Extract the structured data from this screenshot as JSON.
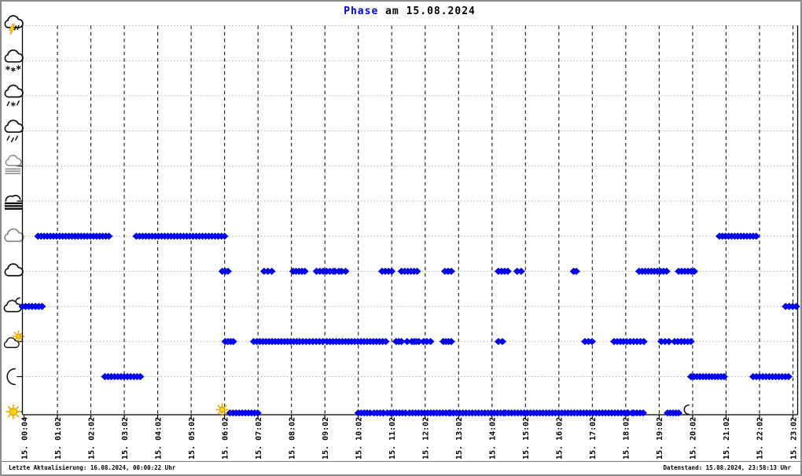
{
  "title": {
    "highlight": "Phase",
    "rest": " am 15.08.2024"
  },
  "status_bar": {
    "left": "Letzte Aktualisierung: 16.08.2024, 00:00:22 Uhr",
    "right": "Datenstand: 15.08.2024, 23:58:13 Uhr"
  },
  "colors": {
    "series": "#0000ee",
    "title_highlight": "#0000ff",
    "grid_horizontal": "#b2b2b2",
    "grid_vertical": "#1a1a1a",
    "axis": "#000000",
    "sun_yellow": "#ffd400",
    "sun_edge": "#d99e00",
    "icon_gray": "#8b8b8b",
    "icon_black": "#111111"
  },
  "chart_data": {
    "type": "scatter",
    "title": "Phase am 15.08.2024",
    "legend_position": "none",
    "grid": "on",
    "x_axis": {
      "unit": "hours offset from first tick (1 unit = 1 hour = 1 tick)",
      "tick_labels": [
        "15. 00:04",
        "15. 01:02",
        "15. 02:02",
        "15. 03:02",
        "15. 04:02",
        "15. 05:02",
        "15. 06:02",
        "15. 07:02",
        "15. 08:02",
        "15. 09:02",
        "15. 10:02",
        "15. 11:02",
        "15. 12:02",
        "15. 13:02",
        "15. 14:02",
        "15. 15:02",
        "15. 16:02",
        "15. 17:02",
        "15. 18:02",
        "15. 19:02",
        "15. 20:02",
        "15. 21:02",
        "15. 22:02",
        "15. 23:02"
      ]
    },
    "y_axis": {
      "description": "weather phase categories, top to bottom, shown as icons only",
      "rows": [
        {
          "icon": "thunderstorm-icon",
          "segments": []
        },
        {
          "icon": "snow-icon",
          "segments": []
        },
        {
          "icon": "sleet-icon",
          "segments": []
        },
        {
          "icon": "rain-icon",
          "segments": []
        },
        {
          "icon": "mist-icon",
          "segments": []
        },
        {
          "icon": "fog-icon",
          "segments": []
        },
        {
          "icon": "overcast-icon",
          "segments": [
            [
              0.42,
              2.54
            ],
            [
              3.36,
              6.0
            ],
            [
              20.8,
              21.9
            ]
          ]
        },
        {
          "icon": "cloudy-icon",
          "segments": [
            [
              5.93,
              6.1
            ],
            [
              7.18,
              7.41
            ],
            [
              8.05,
              8.4
            ],
            [
              8.75,
              9.25
            ],
            [
              9.3,
              9.42
            ],
            [
              9.5,
              9.62
            ],
            [
              10.71,
              11.0
            ],
            [
              11.29,
              11.76
            ],
            [
              12.59,
              12.78
            ],
            [
              14.19,
              14.47
            ],
            [
              14.75,
              14.87
            ],
            [
              16.44,
              16.52
            ],
            [
              18.4,
              19.22
            ],
            [
              19.58,
              20.05
            ]
          ]
        },
        {
          "icon": "cloud-moon-icon",
          "segments": [
            [
              -0.05,
              0.54
            ],
            [
              22.78,
              23.1
            ]
          ]
        },
        {
          "icon": "cloud-sun-icon",
          "segments": [
            [
              6.02,
              6.26
            ],
            [
              6.87,
              8.16
            ],
            [
              8.24,
              8.94
            ],
            [
              9.06,
              10.82
            ],
            [
              11.13,
              11.29
            ],
            [
              11.46,
              11.6
            ],
            [
              11.67,
              11.73
            ],
            [
              11.81,
              11.95
            ],
            [
              12.05,
              12.16
            ],
            [
              12.54,
              12.78
            ],
            [
              14.19,
              14.31
            ],
            [
              16.78,
              16.99
            ],
            [
              17.65,
              17.84
            ],
            [
              17.93,
              18.54
            ],
            [
              19.06,
              19.29
            ],
            [
              19.46,
              19.95
            ]
          ]
        },
        {
          "icon": "moon-icon",
          "segments": [
            [
              2.42,
              3.48
            ],
            [
              19.95,
              20.94
            ],
            [
              21.81,
              22.87
            ]
          ]
        },
        {
          "icon": "sun-icon",
          "segments": [
            [
              6.16,
              6.99
            ],
            [
              10.0,
              10.35
            ],
            [
              10.47,
              10.75
            ],
            [
              10.87,
              11.41
            ],
            [
              11.53,
              12.71
            ],
            [
              12.75,
              14.35
            ],
            [
              14.4,
              18.05
            ],
            [
              18.07,
              18.19
            ],
            [
              18.24,
              18.52
            ],
            [
              19.25,
              19.58
            ]
          ]
        }
      ]
    },
    "markers": [
      {
        "icon": "sunrise-sun-icon",
        "hour": 5.93
      },
      {
        "icon": "sunset-moon-icon",
        "hour": 19.88
      }
    ]
  }
}
